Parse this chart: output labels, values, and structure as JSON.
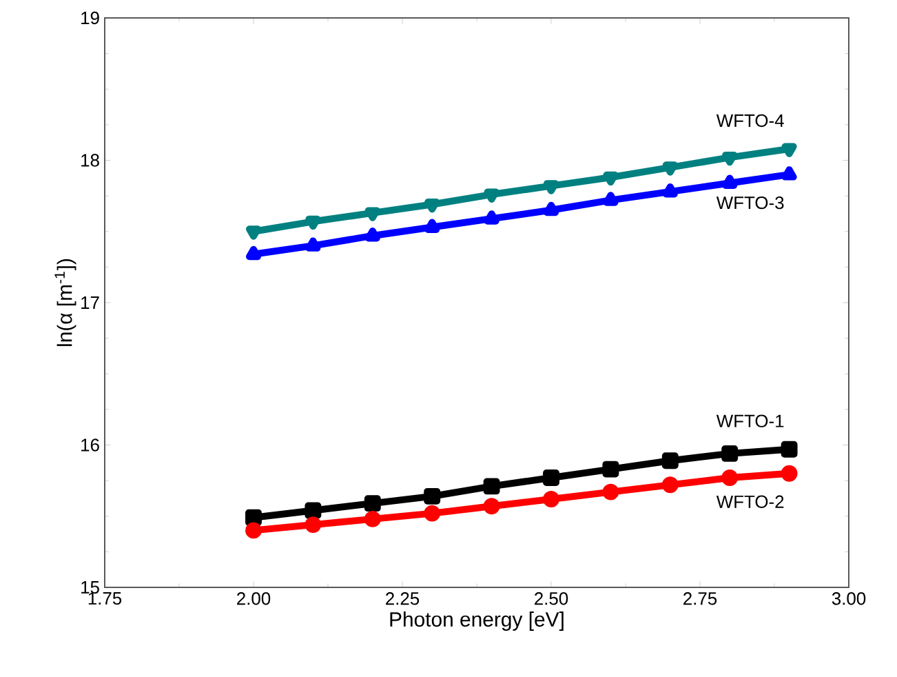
{
  "chart_data": {
    "type": "line",
    "xlabel": "Photon energy [eV]",
    "ylabel": "ln(α [m$^{-1}$])",
    "x": [
      2.0,
      2.1,
      2.2,
      2.3,
      2.4,
      2.5,
      2.6,
      2.7,
      2.8,
      2.9
    ],
    "series": [
      {
        "name": "WFTO-1",
        "color": "#000000",
        "marker": "square",
        "values": [
          15.49,
          15.54,
          15.59,
          15.64,
          15.71,
          15.77,
          15.83,
          15.89,
          15.94,
          15.97
        ]
      },
      {
        "name": "WFTO-2",
        "color": "#ff0000",
        "marker": "circle",
        "values": [
          15.4,
          15.44,
          15.48,
          15.52,
          15.57,
          15.62,
          15.67,
          15.72,
          15.77,
          15.8
        ]
      },
      {
        "name": "WFTO-3",
        "color": "#0000ff",
        "marker": "triangle",
        "values": [
          17.34,
          17.4,
          17.47,
          17.53,
          17.59,
          17.65,
          17.72,
          17.78,
          17.84,
          17.9
        ]
      },
      {
        "name": "WFTO-4",
        "color": "#008080",
        "marker": "triangle",
        "values": [
          17.5,
          17.57,
          17.63,
          17.69,
          17.76,
          17.82,
          17.88,
          17.95,
          18.02,
          18.08
        ]
      }
    ],
    "xlim": [
      1.75,
      3.0
    ],
    "xticks": [
      {
        "value": 1.75,
        "label": "1.75"
      },
      {
        "value": 2.0,
        "label": "2.00"
      },
      {
        "value": 2.25,
        "label": "2.25"
      },
      {
        "value": 2.5,
        "label": "2.50"
      },
      {
        "value": 2.75,
        "label": "2.75"
      },
      {
        "value": 3.0,
        "label": "3.00"
      }
    ],
    "ylim": [
      15,
      19
    ],
    "yticks": [
      15,
      16,
      17,
      18,
      19
    ],
    "grid": false,
    "legend": false,
    "line_style": "solid"
  }
}
